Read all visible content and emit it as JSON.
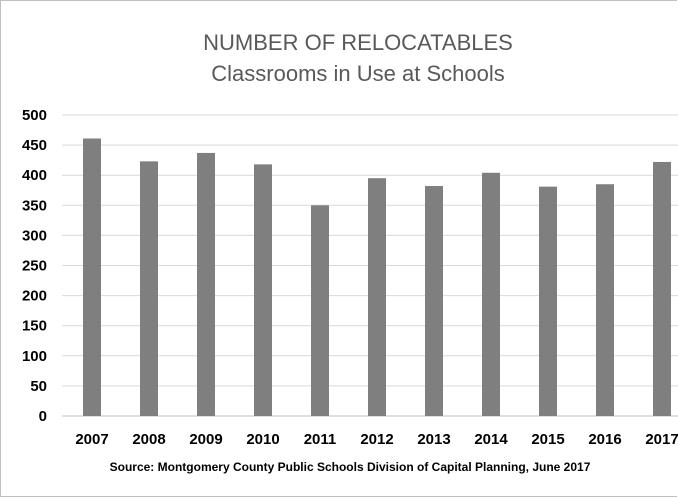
{
  "chart_data": {
    "type": "bar",
    "title": "NUMBER OF RELOCATABLES",
    "subtitle": "Classrooms in Use at Schools",
    "categories": [
      "2007",
      "2008",
      "2009",
      "2010",
      "2011",
      "2012",
      "2013",
      "2014",
      "2015",
      "2016",
      "2017"
    ],
    "values": [
      461,
      423,
      437,
      418,
      350,
      395,
      382,
      404,
      381,
      385,
      422
    ],
    "ylim": [
      0,
      500
    ],
    "yticks": [
      "0",
      "50",
      "100",
      "150",
      "200",
      "250",
      "300",
      "350",
      "400",
      "450",
      "500"
    ],
    "grid": true,
    "bar_color": "#7f7f7f",
    "gridline_color": "#d9d9d9",
    "source": "Source:  Montgomery County Public Schools Division of Capital Planning, June 2017"
  }
}
